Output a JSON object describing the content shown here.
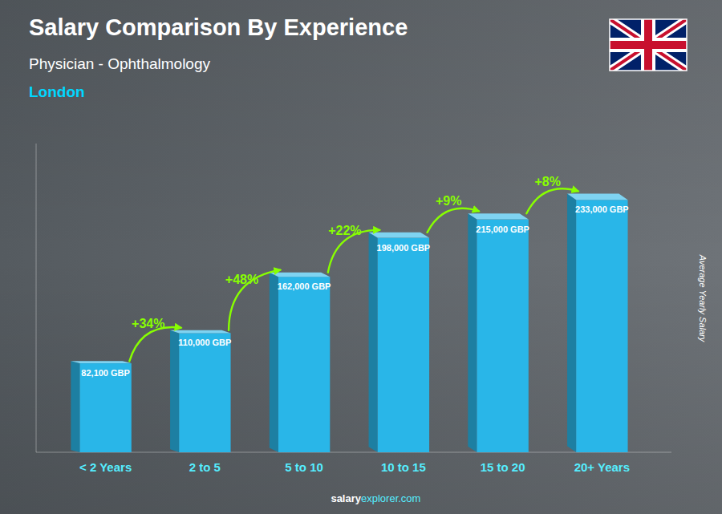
{
  "chart_data": {
    "type": "bar",
    "title": "Salary Comparison By Experience",
    "subtitle": "Physician - Ophthalmology",
    "city": "London",
    "y_label": "Average Yearly Salary",
    "categories": [
      "< 2 Years",
      "2 to 5",
      "5 to 10",
      "10 to 15",
      "15 to 20",
      "20+ Years"
    ],
    "values": [
      82100,
      110000,
      162000,
      198000,
      215000,
      233000
    ],
    "value_labels": [
      "82,100 GBP",
      "110,000 GBP",
      "162,000 GBP",
      "198,000 GBP",
      "215,000 GBP",
      "233,000 GBP"
    ],
    "data_labels": true,
    "annotations": [
      "+34%",
      "+48%",
      "+22%",
      "+9%",
      "+8%"
    ],
    "watermark": [
      "salary",
      "explorer.com"
    ],
    "color": "#29B6E8",
    "ylim": [
      0,
      285000
    ],
    "tick_labels": "x",
    "grid": false
  }
}
